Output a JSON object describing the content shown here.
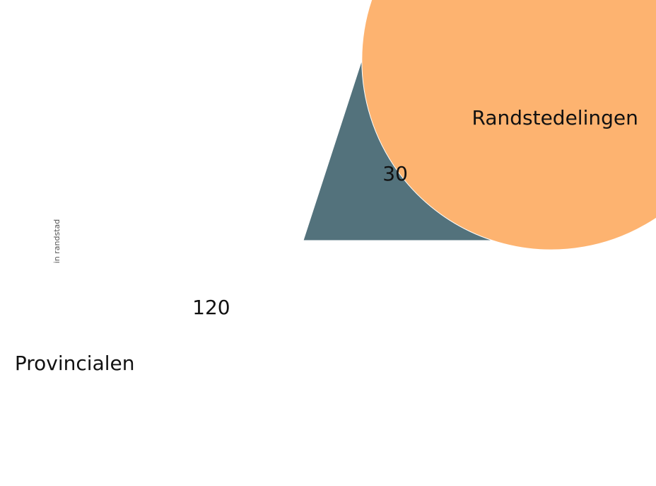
{
  "chart_data": {
    "type": "pie",
    "ylabel": "in randstad",
    "slices": [
      {
        "label": "Provincialen",
        "value": 120,
        "color": "#fdb370"
      },
      {
        "label": "Randstedelingen",
        "value": 30,
        "color": "#53727c"
      }
    ],
    "start_angle_deg": 0,
    "direction": "counterclockwise",
    "legend": "none"
  }
}
